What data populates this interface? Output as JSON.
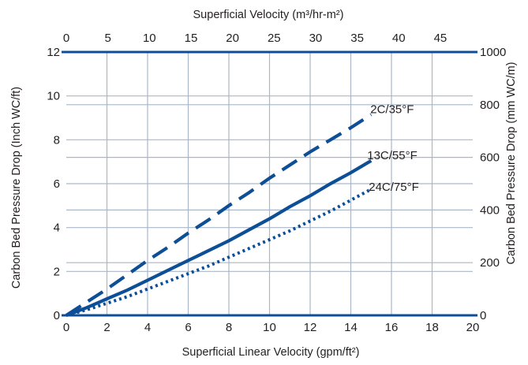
{
  "chart_data": {
    "type": "line",
    "x_bottom": {
      "label": "Superficial Linear Velocity (gpm/ft²)",
      "ticks": [
        0,
        2,
        4,
        6,
        8,
        10,
        12,
        14,
        16,
        18,
        20
      ],
      "range": [
        0,
        20
      ]
    },
    "x_top": {
      "label": "Superficial Velocity (m³/hr-m²)",
      "ticks": [
        0,
        5,
        10,
        15,
        20,
        25,
        30,
        35,
        40,
        45
      ],
      "range": [
        0,
        48.9
      ]
    },
    "y_left": {
      "label": "Carbon Bed Pressure Drop (Inch WC/ft)",
      "ticks": [
        0,
        2,
        4,
        6,
        8,
        10,
        12
      ],
      "range": [
        0,
        12
      ]
    },
    "y_right": {
      "label": "Carbon Bed Pressure Drop (mm WC/m)",
      "ticks": [
        0,
        200,
        400,
        600,
        800,
        1000
      ],
      "range": [
        0,
        1000
      ]
    },
    "series": [
      {
        "name": "2C/35°F",
        "style": "dashed",
        "x": [
          0,
          1,
          2,
          3,
          4,
          5,
          6,
          7,
          8,
          9,
          10,
          11,
          12,
          13,
          14,
          15
        ],
        "y": [
          0,
          0.6,
          1.2,
          1.85,
          2.5,
          3.1,
          3.75,
          4.35,
          5.0,
          5.6,
          6.25,
          6.85,
          7.45,
          8.0,
          8.55,
          9.15
        ]
      },
      {
        "name": "13C/55°F",
        "style": "solid",
        "x": [
          0,
          1,
          2,
          3,
          4,
          5,
          6,
          7,
          8,
          9,
          10,
          11,
          12,
          13,
          14,
          15
        ],
        "y": [
          0,
          0.35,
          0.75,
          1.15,
          1.6,
          2.05,
          2.5,
          2.95,
          3.4,
          3.9,
          4.4,
          4.95,
          5.45,
          6.0,
          6.5,
          7.05
        ]
      },
      {
        "name": "24C/75°F",
        "style": "dotted",
        "x": [
          0,
          1,
          2,
          3,
          4,
          5,
          6,
          7,
          8,
          9,
          10,
          11,
          12,
          13,
          14,
          15
        ],
        "y": [
          0,
          0.25,
          0.55,
          0.85,
          1.2,
          1.55,
          1.9,
          2.25,
          2.65,
          3.05,
          3.45,
          3.85,
          4.3,
          4.75,
          5.25,
          5.75
        ]
      }
    ],
    "grid": true,
    "colors": {
      "line": "#0c4f97",
      "grid": "#a9b7c9",
      "text": "#231f20"
    }
  }
}
